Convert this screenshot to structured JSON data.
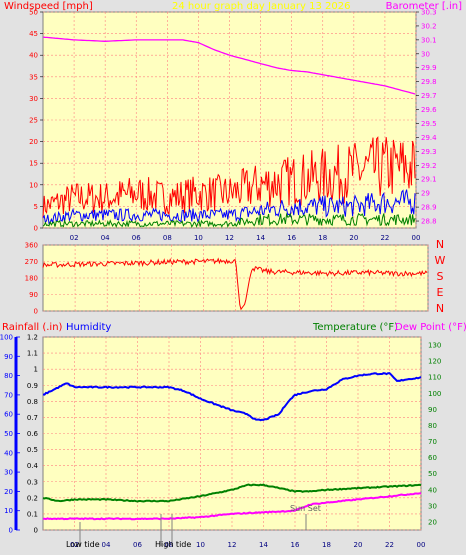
{
  "header": {
    "wind_label": "Windspeed [mph]",
    "title": "24 hour graph day   January 13 2026",
    "baro_label": "Barometer [.in]"
  },
  "mid": {
    "compass": [
      "N",
      "W",
      "S",
      "E",
      "N"
    ]
  },
  "lower": {
    "rain_label": "Rainfall (.in)",
    "humidity_label": "Humidity",
    "temp_label": "Temperature (°F)",
    "dew_label": "Dew Point (°F)",
    "sunset_label": "Sun Set",
    "low_tide_label": "Low tide",
    "high_tide_label": "High tide"
  },
  "colors": {
    "plot_bg": "#ffffc0",
    "grid": "#ff8080",
    "wind_gust": "#ff0000",
    "wind_avg": "#0000ff",
    "wind_min": "#008000",
    "barometer": "#ff00ff",
    "direction": "#ff0000",
    "humidity": "#0000ff",
    "temperature": "#008000",
    "dewpoint": "#ff00ff",
    "title": "#ffff00"
  },
  "chart_data": [
    {
      "type": "line",
      "x_ticks": [
        "02",
        "04",
        "06",
        "08",
        "10",
        "12",
        "14",
        "16",
        "18",
        "20",
        "22",
        "00"
      ],
      "y_left": {
        "label": "Windspeed [mph]",
        "ticks": [
          0,
          5,
          10,
          15,
          20,
          25,
          30,
          35,
          40,
          45,
          50
        ],
        "ylim": [
          0,
          50
        ]
      },
      "y_right": {
        "label": "Barometer [.in]",
        "ticks": [
          "28.8",
          "28.9",
          "29",
          "29.1",
          "29.2",
          "29.3",
          "29.4",
          "29.5",
          "29.6",
          "29.7",
          "29.8",
          "29.9",
          "30",
          "30.1",
          "30.2",
          "30.3"
        ],
        "ylim": [
          28.75,
          30.3
        ]
      },
      "series": [
        {
          "name": "Barometer",
          "axis": "right",
          "x": [
            0,
            2,
            4,
            6,
            8,
            9,
            10,
            11,
            12,
            13,
            14,
            15,
            16,
            17,
            18,
            19,
            20,
            21,
            22,
            23,
            24
          ],
          "values": [
            30.12,
            30.1,
            30.09,
            30.1,
            30.1,
            30.1,
            30.08,
            30.03,
            29.99,
            29.96,
            29.93,
            29.9,
            29.88,
            29.87,
            29.85,
            29.83,
            29.81,
            29.79,
            29.77,
            29.74,
            29.71
          ]
        },
        {
          "name": "Wind gust",
          "axis": "left",
          "x": [
            0,
            2,
            4,
            6,
            8,
            10,
            12,
            14,
            16,
            18,
            20,
            22,
            24
          ],
          "values": [
            5,
            7,
            7,
            8,
            7,
            8,
            8,
            10,
            11,
            12,
            13,
            14,
            14
          ]
        },
        {
          "name": "Wind average",
          "axis": "left",
          "x": [
            0,
            2,
            4,
            6,
            8,
            10,
            12,
            14,
            16,
            18,
            20,
            22,
            24
          ],
          "values": [
            2,
            3,
            3,
            3,
            3,
            3,
            3,
            4,
            5,
            5,
            5,
            6,
            6
          ]
        },
        {
          "name": "Wind minimum",
          "axis": "left",
          "x": [
            0,
            2,
            4,
            6,
            8,
            10,
            12,
            14,
            16,
            18,
            20,
            22,
            24
          ],
          "values": [
            1,
            1,
            1,
            1,
            1,
            1,
            1,
            2,
            2,
            2,
            2,
            2,
            2
          ]
        }
      ]
    },
    {
      "type": "line",
      "x_ticks": [
        "02",
        "04",
        "06",
        "08",
        "10",
        "12",
        "14",
        "16",
        "18",
        "20",
        "22",
        "00"
      ],
      "y_left": {
        "ticks": [
          0,
          90,
          180,
          270,
          360
        ],
        "ylim": [
          0,
          360
        ]
      },
      "series": [
        {
          "name": "Wind direction",
          "x": [
            0,
            2,
            4,
            6,
            8,
            10,
            12,
            12.3,
            12.6,
            13,
            14,
            16,
            18,
            20,
            22,
            24
          ],
          "values": [
            250,
            255,
            258,
            262,
            268,
            270,
            275,
            5,
            40,
            235,
            215,
            210,
            205,
            210,
            205,
            205
          ]
        }
      ]
    },
    {
      "type": "line",
      "x_ticks": [
        "02",
        "04",
        "06",
        "08",
        "10",
        "12",
        "14",
        "16",
        "18",
        "20",
        "22",
        "00"
      ],
      "y_left": {
        "label": "Rainfall (.in)",
        "ticks": [
          "0",
          "0.1",
          "0.2",
          "0.3",
          "0.4",
          "0.5",
          "0.6",
          "0.7",
          "0.8",
          "0.9",
          "1",
          "1.1",
          "1.2"
        ],
        "ylim": [
          0,
          1.2
        ]
      },
      "y_left2": {
        "label": "Humidity",
        "ticks": [
          0,
          10,
          20,
          30,
          40,
          50,
          60,
          70,
          80,
          90,
          100
        ],
        "ylim": [
          0,
          100
        ]
      },
      "y_right": {
        "label": "Temperature (°F)",
        "ticks": [
          20,
          30,
          40,
          50,
          60,
          70,
          80,
          90,
          100,
          110,
          120,
          130
        ],
        "ylim": [
          15,
          135
        ]
      },
      "series": [
        {
          "name": "Humidity",
          "axis": "left2",
          "x": [
            0,
            0.5,
            1,
            1.5,
            2,
            4,
            6,
            8,
            9,
            10,
            11,
            12,
            13,
            13.5,
            14,
            15,
            15.5,
            16,
            17,
            18,
            19,
            20,
            21,
            22,
            22.5,
            23,
            24
          ],
          "values": [
            70,
            72,
            74,
            76,
            74,
            74,
            74,
            74,
            72,
            68,
            65,
            62,
            60,
            57,
            57,
            60,
            66,
            70,
            72,
            73,
            78,
            80,
            81,
            81,
            77,
            78,
            79
          ]
        },
        {
          "name": "Temperature",
          "axis": "right",
          "x": [
            0,
            1,
            2,
            4,
            6,
            8,
            10,
            12,
            13,
            14,
            15,
            16,
            17,
            18,
            20,
            22,
            24
          ],
          "values": [
            35,
            33,
            34,
            34,
            33,
            33,
            36,
            40,
            43,
            43,
            41,
            39,
            39,
            40,
            41,
            42,
            43
          ]
        },
        {
          "name": "Dew Point",
          "axis": "right",
          "x": [
            0,
            2,
            4,
            6,
            8,
            10,
            12,
            14,
            16,
            17,
            18,
            20,
            22,
            24
          ],
          "values": [
            22,
            22,
            22,
            22,
            22,
            23,
            25,
            26,
            27,
            31,
            32,
            34,
            36,
            38
          ]
        }
      ]
    }
  ]
}
